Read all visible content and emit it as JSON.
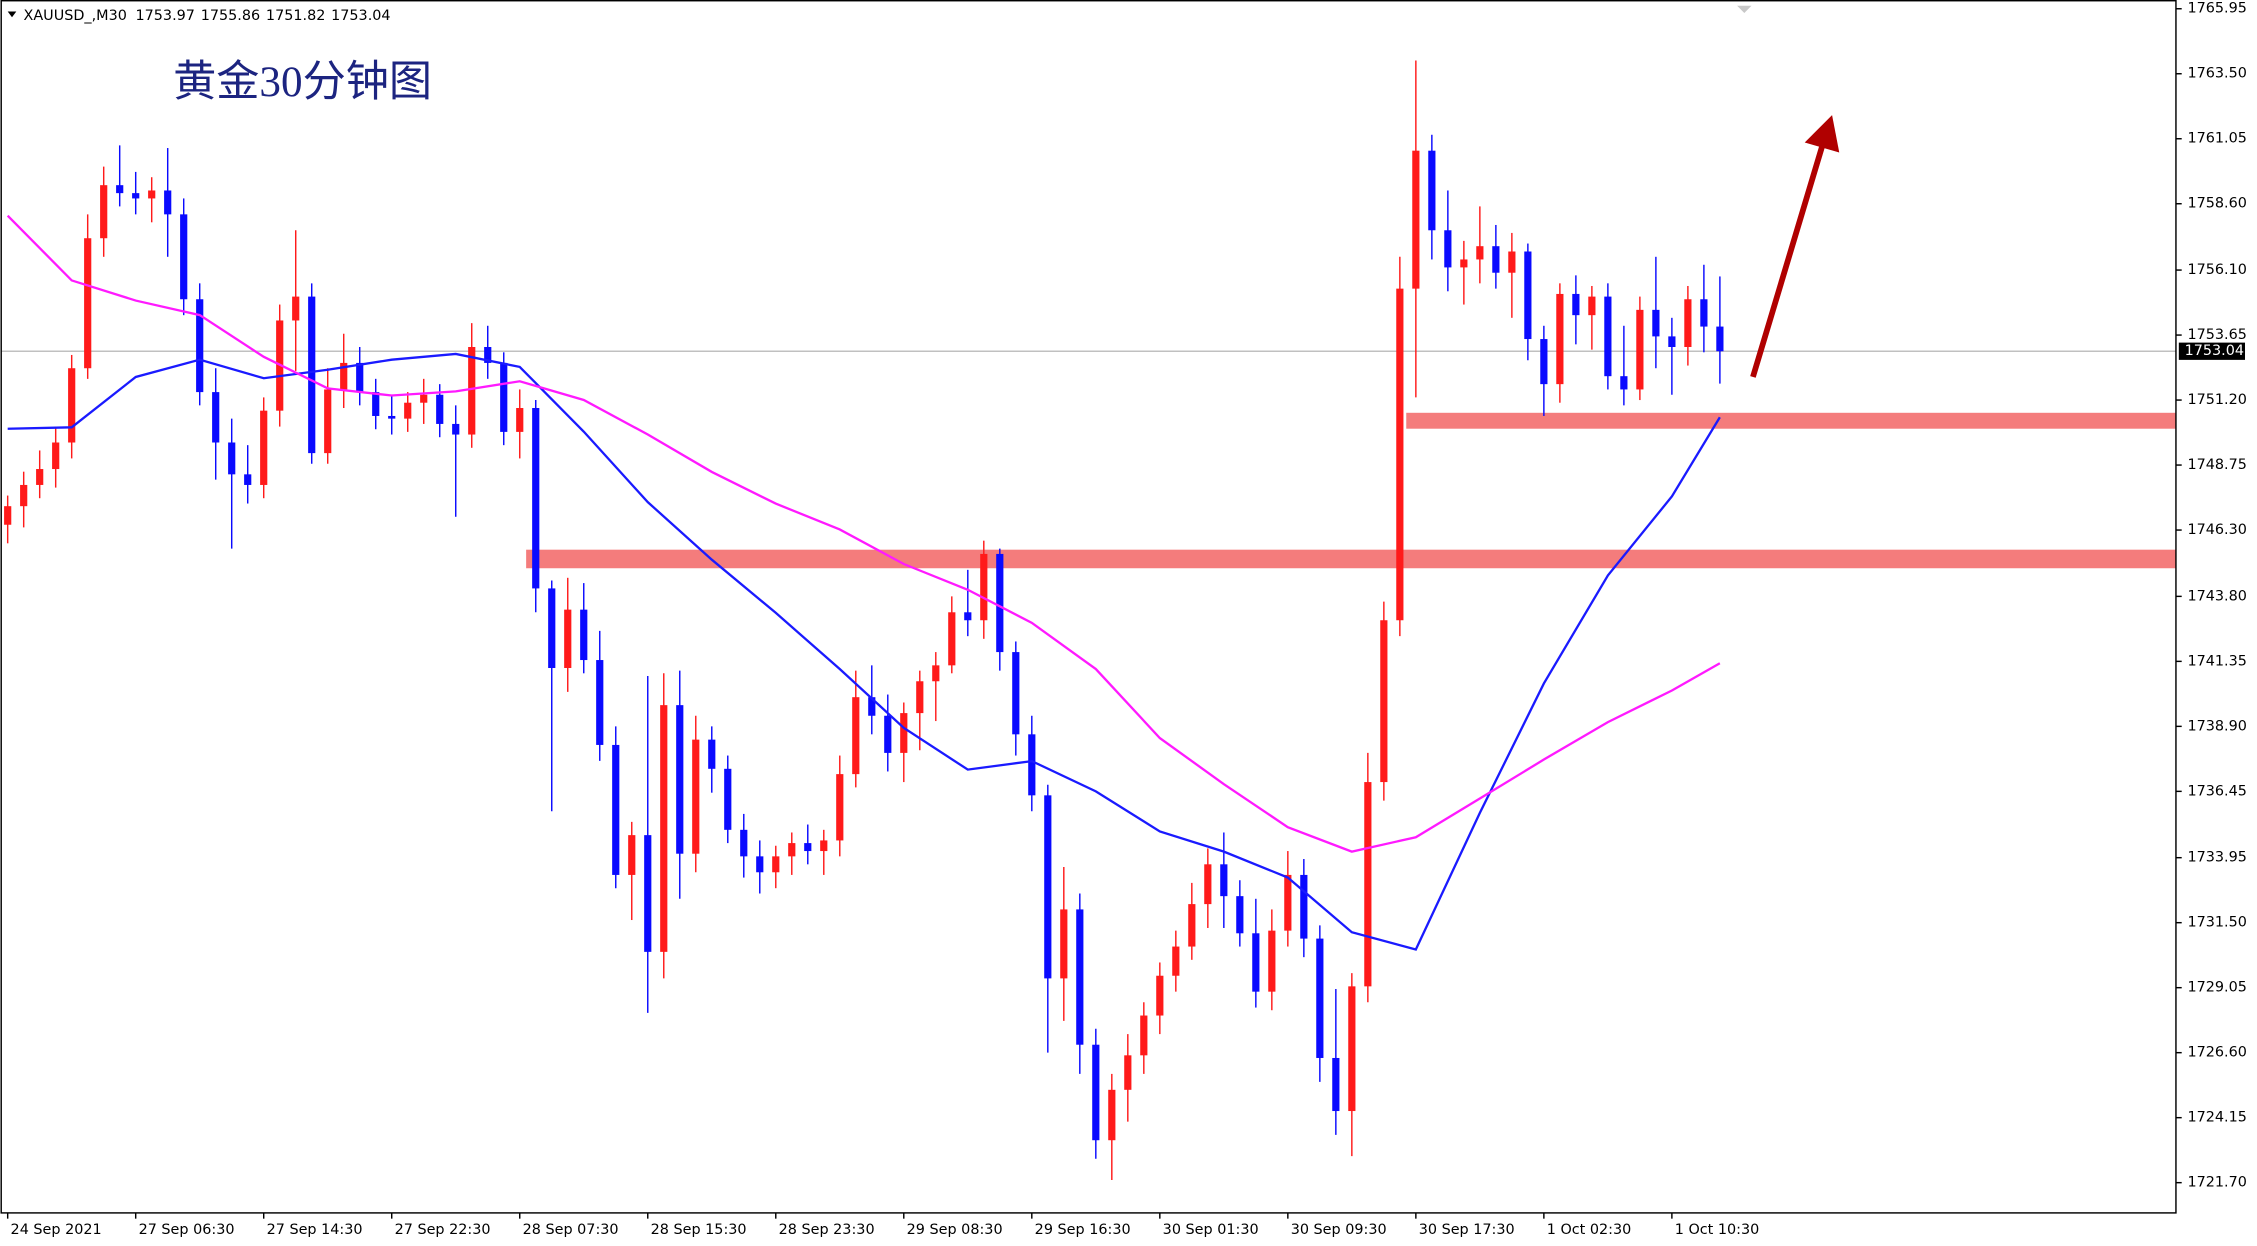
{
  "chart_data": {
    "type": "candlestick",
    "symbol": "XAUUSD_,M30",
    "title": "黄金30分钟图",
    "up_color": "#ff1a1a",
    "down_color": "#0a0aff",
    "candles": [
      [
        1746.5,
        1747.6,
        1745.8,
        1747.2
      ],
      [
        1747.2,
        1748.5,
        1746.4,
        1748.0
      ],
      [
        1748.0,
        1749.3,
        1747.5,
        1748.6
      ],
      [
        1748.6,
        1750.2,
        1747.9,
        1749.6
      ],
      [
        1749.6,
        1752.9,
        1749.0,
        1752.4
      ],
      [
        1752.4,
        1758.2,
        1752.0,
        1757.3
      ],
      [
        1757.3,
        1760.0,
        1756.6,
        1759.3
      ],
      [
        1759.3,
        1760.8,
        1758.5,
        1759.0
      ],
      [
        1759.0,
        1759.8,
        1758.2,
        1758.8
      ],
      [
        1758.8,
        1759.6,
        1757.9,
        1759.1
      ],
      [
        1759.1,
        1760.7,
        1756.6,
        1758.2
      ],
      [
        1758.2,
        1758.8,
        1754.4,
        1755.0
      ],
      [
        1755.0,
        1755.6,
        1751.0,
        1751.5
      ],
      [
        1751.5,
        1752.4,
        1748.2,
        1749.6
      ],
      [
        1749.6,
        1750.5,
        1745.6,
        1748.4
      ],
      [
        1748.4,
        1749.5,
        1747.3,
        1748.0
      ],
      [
        1748.0,
        1751.3,
        1747.5,
        1750.8
      ],
      [
        1750.8,
        1754.8,
        1750.2,
        1754.2
      ],
      [
        1754.2,
        1757.6,
        1752.3,
        1755.1
      ],
      [
        1755.1,
        1755.6,
        1748.8,
        1749.2
      ],
      [
        1749.2,
        1752.4,
        1748.8,
        1751.6
      ],
      [
        1751.6,
        1753.7,
        1750.9,
        1752.6
      ],
      [
        1752.6,
        1753.2,
        1751.0,
        1751.5
      ],
      [
        1751.5,
        1752.0,
        1750.1,
        1750.6
      ],
      [
        1750.6,
        1751.4,
        1749.9,
        1750.5
      ],
      [
        1750.5,
        1751.5,
        1750.0,
        1751.1
      ],
      [
        1751.1,
        1752.0,
        1750.3,
        1751.4
      ],
      [
        1751.4,
        1751.8,
        1749.8,
        1750.3
      ],
      [
        1750.3,
        1751.0,
        1746.8,
        1749.9
      ],
      [
        1749.9,
        1754.1,
        1749.4,
        1753.2
      ],
      [
        1753.2,
        1754.0,
        1752.0,
        1752.6
      ],
      [
        1752.6,
        1753.0,
        1749.5,
        1750.0
      ],
      [
        1750.0,
        1751.6,
        1749.0,
        1750.9
      ],
      [
        1750.9,
        1751.2,
        1743.2,
        1744.1
      ],
      [
        1744.1,
        1744.4,
        1735.7,
        1741.1
      ],
      [
        1741.1,
        1744.5,
        1740.2,
        1743.3
      ],
      [
        1743.3,
        1744.3,
        1740.9,
        1741.4
      ],
      [
        1741.4,
        1742.5,
        1737.6,
        1738.2
      ],
      [
        1738.2,
        1738.9,
        1732.8,
        1733.3
      ],
      [
        1733.3,
        1735.3,
        1731.6,
        1734.8
      ],
      [
        1734.8,
        1740.8,
        1728.1,
        1730.4
      ],
      [
        1730.4,
        1740.9,
        1729.4,
        1739.7
      ],
      [
        1739.7,
        1741.0,
        1732.4,
        1734.1
      ],
      [
        1734.1,
        1739.3,
        1733.4,
        1738.4
      ],
      [
        1738.4,
        1738.9,
        1736.4,
        1737.3
      ],
      [
        1737.3,
        1737.8,
        1734.5,
        1735.0
      ],
      [
        1735.0,
        1735.6,
        1733.2,
        1734.0
      ],
      [
        1734.0,
        1734.6,
        1732.6,
        1733.4
      ],
      [
        1733.4,
        1734.4,
        1732.8,
        1734.0
      ],
      [
        1734.0,
        1734.9,
        1733.3,
        1734.5
      ],
      [
        1734.5,
        1735.2,
        1733.7,
        1734.2
      ],
      [
        1734.2,
        1735.0,
        1733.3,
        1734.6
      ],
      [
        1734.6,
        1737.8,
        1734.0,
        1737.1
      ],
      [
        1737.1,
        1741.0,
        1736.6,
        1740.0
      ],
      [
        1740.0,
        1741.2,
        1738.6,
        1739.3
      ],
      [
        1739.3,
        1740.1,
        1737.2,
        1737.9
      ],
      [
        1737.9,
        1739.8,
        1736.8,
        1739.4
      ],
      [
        1739.4,
        1741.0,
        1738.0,
        1740.6
      ],
      [
        1740.6,
        1741.7,
        1739.1,
        1741.2
      ],
      [
        1741.2,
        1743.8,
        1740.9,
        1743.2
      ],
      [
        1743.2,
        1744.8,
        1742.3,
        1742.9
      ],
      [
        1742.9,
        1745.9,
        1742.2,
        1745.4
      ],
      [
        1745.4,
        1745.6,
        1741.0,
        1741.7
      ],
      [
        1741.7,
        1742.1,
        1737.8,
        1738.6
      ],
      [
        1738.6,
        1739.3,
        1735.7,
        1736.3
      ],
      [
        1736.3,
        1736.7,
        1726.6,
        1729.4
      ],
      [
        1729.4,
        1733.6,
        1727.8,
        1732.0
      ],
      [
        1732.0,
        1732.6,
        1725.8,
        1726.9
      ],
      [
        1726.9,
        1727.5,
        1722.6,
        1723.3
      ],
      [
        1723.3,
        1725.8,
        1721.8,
        1725.2
      ],
      [
        1725.2,
        1727.3,
        1724.0,
        1726.5
      ],
      [
        1726.5,
        1728.5,
        1725.8,
        1728.0
      ],
      [
        1728.0,
        1730.0,
        1727.3,
        1729.5
      ],
      [
        1729.5,
        1731.2,
        1728.9,
        1730.6
      ],
      [
        1730.6,
        1733.0,
        1730.1,
        1732.2
      ],
      [
        1732.2,
        1734.3,
        1731.3,
        1733.7
      ],
      [
        1733.7,
        1734.9,
        1731.3,
        1732.5
      ],
      [
        1732.5,
        1733.1,
        1730.6,
        1731.1
      ],
      [
        1731.1,
        1732.4,
        1728.3,
        1728.9
      ],
      [
        1728.9,
        1732.0,
        1728.2,
        1731.2
      ],
      [
        1731.2,
        1734.2,
        1730.6,
        1733.3
      ],
      [
        1733.3,
        1733.9,
        1730.2,
        1730.9
      ],
      [
        1730.9,
        1731.4,
        1725.5,
        1726.4
      ],
      [
        1726.4,
        1729.0,
        1723.5,
        1724.4
      ],
      [
        1724.4,
        1729.6,
        1722.7,
        1729.1
      ],
      [
        1729.1,
        1737.9,
        1728.5,
        1736.8
      ],
      [
        1736.8,
        1743.6,
        1736.1,
        1742.9
      ],
      [
        1742.9,
        1756.6,
        1742.3,
        1755.4
      ],
      [
        1755.4,
        1764.0,
        1751.3,
        1760.6
      ],
      [
        1760.6,
        1761.2,
        1756.5,
        1757.6
      ],
      [
        1757.6,
        1759.1,
        1755.3,
        1756.2
      ],
      [
        1756.2,
        1757.2,
        1754.8,
        1756.5
      ],
      [
        1756.5,
        1758.5,
        1755.6,
        1757.0
      ],
      [
        1757.0,
        1757.8,
        1755.4,
        1756.0
      ],
      [
        1756.0,
        1757.5,
        1754.3,
        1756.8
      ],
      [
        1756.8,
        1757.1,
        1752.7,
        1753.5
      ],
      [
        1753.5,
        1754.0,
        1750.6,
        1751.8
      ],
      [
        1751.8,
        1755.6,
        1751.1,
        1755.2
      ],
      [
        1755.2,
        1755.9,
        1753.3,
        1754.4
      ],
      [
        1754.4,
        1755.5,
        1753.1,
        1755.1
      ],
      [
        1755.1,
        1755.6,
        1751.6,
        1752.1
      ],
      [
        1752.1,
        1754.0,
        1751.0,
        1751.6
      ],
      [
        1751.6,
        1755.1,
        1751.2,
        1754.6
      ],
      [
        1754.6,
        1756.6,
        1752.4,
        1753.6
      ],
      [
        1753.6,
        1754.3,
        1751.4,
        1753.2
      ],
      [
        1753.2,
        1755.5,
        1752.5,
        1755.0
      ],
      [
        1755.0,
        1756.3,
        1753.0,
        1753.97
      ],
      [
        1753.97,
        1755.86,
        1751.82,
        1753.04
      ]
    ],
    "series": [
      {
        "color": "#1a1aff",
        "x": [
          0,
          4,
          8,
          12,
          16,
          20,
          24,
          28,
          32,
          36,
          40,
          44,
          48,
          52,
          56,
          60,
          64,
          68,
          72,
          76,
          80,
          84,
          88,
          92,
          96,
          100,
          104,
          107
        ],
        "values": [
          1750.12,
          1750.17,
          1752.07,
          1752.72,
          1752.02,
          1752.34,
          1752.72,
          1752.94,
          1752.45,
          1750.01,
          1747.35,
          1745.18,
          1743.18,
          1741.06,
          1738.84,
          1737.27,
          1737.59,
          1736.45,
          1734.94,
          1734.18,
          1733.2,
          1731.14,
          1730.49,
          1735.64,
          1740.52,
          1744.59,
          1747.57,
          1750.55
        ]
      },
      {
        "color": "#ff1aff",
        "x": [
          0,
          4,
          8,
          12,
          16,
          20,
          24,
          28,
          32,
          36,
          40,
          44,
          48,
          52,
          56,
          60,
          64,
          68,
          72,
          76,
          80,
          84,
          88,
          92,
          96,
          100,
          104,
          107
        ],
        "values": [
          1758.15,
          1755.71,
          1754.95,
          1754.4,
          1752.83,
          1751.64,
          1751.37,
          1751.53,
          1751.91,
          1751.2,
          1749.9,
          1748.49,
          1747.3,
          1746.32,
          1745.02,
          1744.05,
          1742.8,
          1741.06,
          1738.46,
          1736.72,
          1735.1,
          1734.18,
          1734.72,
          1736.18,
          1737.65,
          1739.06,
          1740.25,
          1741.28
        ]
      }
    ],
    "bands": [
      {
        "from": 1744.86,
        "to": 1745.56,
        "x_start": 32.4,
        "color": "#f47c7c"
      },
      {
        "from": 1750.12,
        "to": 1750.72,
        "x_start": 87.4,
        "color": "#f47c7c"
      }
    ],
    "xlim": [
      -0.45,
      135.5
    ],
    "xticks": [
      {
        "value": 0,
        "label": "24 Sep 2021"
      },
      {
        "value": 8,
        "label": "27 Sep 06:30"
      },
      {
        "value": 16,
        "label": "27 Sep 14:30"
      },
      {
        "value": 24,
        "label": "27 Sep 22:30"
      },
      {
        "value": 32,
        "label": "28 Sep 07:30"
      },
      {
        "value": 40,
        "label": "28 Sep 15:30"
      },
      {
        "value": 48,
        "label": "28 Sep 23:30"
      },
      {
        "value": 56,
        "label": "29 Sep 08:30"
      },
      {
        "value": 64,
        "label": "29 Sep 16:30"
      },
      {
        "value": 72,
        "label": "30 Sep 01:30"
      },
      {
        "value": 80,
        "label": "30 Sep 09:30"
      },
      {
        "value": 88,
        "label": "30 Sep 17:30"
      },
      {
        "value": 96,
        "label": "1 Oct 02:30"
      },
      {
        "value": 104,
        "label": "1 Oct 10:30"
      }
    ],
    "ylim": [
      1720.56,
      1766.28
    ],
    "yticks": [
      1765.95,
      {
        "value": 1763.5,
        "label": "1763.50"
      },
      1761.05,
      {
        "value": 1758.6,
        "label": "1758.60"
      },
      {
        "value": 1756.1,
        "label": "1756.10"
      },
      1753.65,
      {
        "value": 1751.2,
        "label": "1751.20"
      },
      1748.75,
      {
        "value": 1746.3,
        "label": "1746.30"
      },
      {
        "value": 1743.8,
        "label": "1743.80"
      },
      1741.35,
      {
        "value": 1738.9,
        "label": "1738.90"
      },
      1736.45,
      1733.95,
      {
        "value": 1731.5,
        "label": "1731.50"
      },
      1729.05,
      {
        "value": 1726.6,
        "label": "1726.60"
      },
      1724.15,
      {
        "value": 1721.7,
        "label": "1721.70"
      }
    ]
  }
}
